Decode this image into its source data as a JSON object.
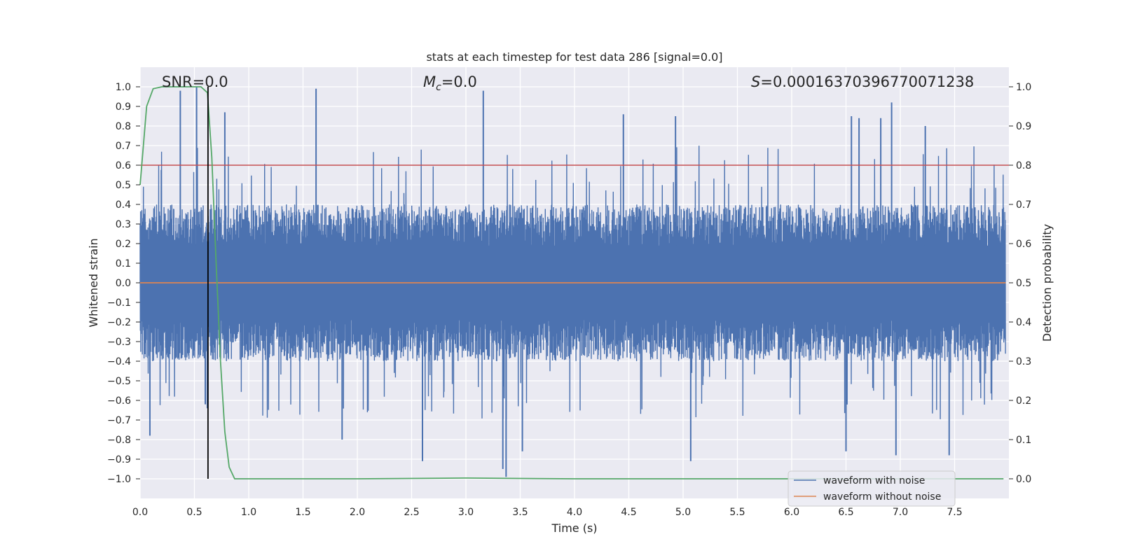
{
  "chart_data": {
    "type": "line",
    "title": "stats at each timestep for test data 286 [signal=0.0]",
    "xlabel": "Time (s)",
    "ylabel": "Whitened strain",
    "y2label": "Detection probability",
    "xlim": [
      0.0,
      8.0
    ],
    "ylim": [
      -1.1,
      1.1
    ],
    "y2lim": [
      -0.05,
      1.05
    ],
    "xticks": [
      0.0,
      0.5,
      1.0,
      1.5,
      2.0,
      2.5,
      3.0,
      3.5,
      4.0,
      4.5,
      5.0,
      5.5,
      6.0,
      6.5,
      7.0,
      7.5
    ],
    "xtick_labels": [
      "0.0",
      "0.5",
      "1.0",
      "1.5",
      "2.0",
      "2.5",
      "3.0",
      "3.5",
      "4.0",
      "4.5",
      "5.0",
      "5.5",
      "6.0",
      "6.5",
      "7.0",
      "7.5"
    ],
    "yticks": [
      1.0,
      0.9,
      0.8,
      0.7,
      0.6,
      0.5,
      0.4,
      0.3,
      0.2,
      0.1,
      0.0,
      -0.1,
      -0.2,
      -0.3,
      -0.4,
      -0.5,
      -0.6,
      -0.7,
      -0.8,
      -0.9,
      -1.0
    ],
    "ytick_labels": [
      "1.0",
      "0.9",
      "0.8",
      "0.7",
      "0.6",
      "0.5",
      "0.4",
      "0.3",
      "0.2",
      "0.1",
      "0.0",
      "−0.1",
      "−0.2",
      "−0.3",
      "−0.4",
      "−0.5",
      "−0.6",
      "−0.7",
      "−0.8",
      "−0.9",
      "−1.0"
    ],
    "y2ticks": [
      1.0,
      0.9,
      0.8,
      0.7,
      0.6,
      0.5,
      0.4,
      0.3,
      0.2,
      0.1,
      0.0
    ],
    "y2tick_labels": [
      "1.0",
      "0.9",
      "0.8",
      "0.7",
      "0.6",
      "0.5",
      "0.4",
      "0.3",
      "0.2",
      "0.1",
      "0.0"
    ],
    "annotations": {
      "snr": "SNR=0.0",
      "mc_symbol": "M",
      "mc_sub": "c",
      "mc_value": "=0.0",
      "s_symbol": "S",
      "s_value": "=0.00016370396770071238"
    },
    "threshold": {
      "value": 0.8,
      "color": "#c44e52"
    },
    "marker_time": 0.625,
    "series": [
      {
        "name": "waveform with noise",
        "color": "#4c72b0",
        "description": "dense noise trace, bulk within ±0.4, isolated spikes",
        "bulk_amplitude": 0.4,
        "sample_rate": 2048,
        "peaks": [
          [
            0.52,
            1.0
          ],
          [
            0.37,
            0.98
          ],
          [
            1.62,
            0.99
          ],
          [
            3.16,
            0.98
          ],
          [
            4.45,
            0.86
          ],
          [
            4.93,
            0.85
          ],
          [
            6.92,
            0.92
          ],
          [
            0.78,
            0.87
          ],
          [
            6.55,
            0.85
          ],
          [
            6.62,
            0.84
          ],
          [
            6.82,
            0.84
          ],
          [
            7.23,
            0.8
          ]
        ],
        "troughs": [
          [
            3.37,
            -0.99
          ],
          [
            3.34,
            -0.95
          ],
          [
            5.07,
            -0.91
          ],
          [
            2.6,
            -0.91
          ],
          [
            6.96,
            -0.88
          ],
          [
            7.45,
            -0.88
          ],
          [
            6.5,
            -0.86
          ],
          [
            3.52,
            -0.86
          ],
          [
            1.86,
            -0.8
          ],
          [
            0.09,
            -0.78
          ],
          [
            0.6,
            -0.62
          ]
        ]
      },
      {
        "name": "waveform without noise",
        "color": "#dd8452",
        "value": 0.0
      },
      {
        "name": "Detection probability",
        "color": "#55a868",
        "axis": "right",
        "x": [
          0.0,
          0.06,
          0.12,
          0.2,
          0.3,
          0.4,
          0.5,
          0.56,
          0.62,
          0.66,
          0.7,
          0.74,
          0.78,
          0.82,
          0.87,
          1.0,
          2.0,
          3.0,
          3.4,
          4.0,
          5.0,
          6.0,
          7.0,
          7.95
        ],
        "values": [
          0.75,
          0.95,
          0.995,
          1.0,
          1.0,
          1.0,
          1.0,
          1.0,
          0.985,
          0.82,
          0.55,
          0.3,
          0.12,
          0.03,
          0.0,
          0.0,
          0.0,
          0.002,
          0.001,
          0.0,
          0.0,
          0.0,
          0.0,
          0.0
        ]
      }
    ],
    "legend": {
      "placement": "bottom-right",
      "entries": [
        "waveform with noise",
        "waveform without noise"
      ]
    },
    "grid": true,
    "colors": {
      "plot_bg": "#eaeaf2",
      "grid": "#ffffff",
      "marker": "#000000"
    }
  }
}
